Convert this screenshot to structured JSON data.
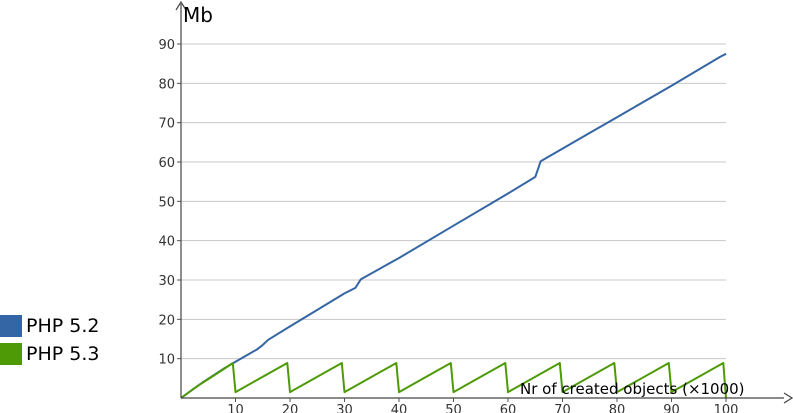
{
  "chart_data": {
    "type": "line",
    "title": "",
    "xlabel": "Nr of created objects (×1000)",
    "ylabel": "Mb",
    "xlim": [
      0,
      100
    ],
    "ylim": [
      0,
      90
    ],
    "x_ticks": [
      10,
      20,
      30,
      40,
      50,
      60,
      70,
      80,
      90,
      100
    ],
    "y_ticks": [
      10,
      20,
      30,
      40,
      50,
      60,
      70,
      80,
      90
    ],
    "grid": "horizontal",
    "legend_position": "bottom-left",
    "series": [
      {
        "name": "PHP 5.2",
        "color": "#3465a4",
        "points": [
          [
            0,
            0
          ],
          [
            2,
            2
          ],
          [
            4,
            4
          ],
          [
            6,
            5.8
          ],
          [
            8,
            7.6
          ],
          [
            10,
            9.2
          ],
          [
            12,
            10.8
          ],
          [
            14,
            12.4
          ],
          [
            15,
            13.5
          ],
          [
            16,
            14.8
          ],
          [
            20,
            18.2
          ],
          [
            25,
            22.4
          ],
          [
            30,
            26.6
          ],
          [
            32,
            28
          ],
          [
            33,
            30.2
          ],
          [
            40,
            35.6
          ],
          [
            50,
            43.8
          ],
          [
            60,
            52
          ],
          [
            65,
            56.2
          ],
          [
            66,
            60.2
          ],
          [
            70,
            63.4
          ],
          [
            80,
            71.4
          ],
          [
            90,
            79.4
          ],
          [
            99,
            86.8
          ],
          [
            100,
            87.5
          ]
        ]
      },
      {
        "name": "PHP 5.3",
        "color": "#4e9a06",
        "points": [
          [
            0,
            0
          ],
          [
            3,
            3
          ],
          [
            5,
            4.8
          ],
          [
            8,
            7.5
          ],
          [
            9.5,
            8.9
          ],
          [
            10,
            1.5
          ],
          [
            19.5,
            8.9
          ],
          [
            20,
            1.5
          ],
          [
            29.5,
            8.9
          ],
          [
            30,
            1.5
          ],
          [
            39.5,
            8.9
          ],
          [
            40,
            1.5
          ],
          [
            49.5,
            8.9
          ],
          [
            50,
            1.5
          ],
          [
            59.5,
            8.9
          ],
          [
            60,
            1.5
          ],
          [
            69.5,
            8.9
          ],
          [
            70,
            1.5
          ],
          [
            79.5,
            8.9
          ],
          [
            80,
            1.5
          ],
          [
            89.5,
            8.9
          ],
          [
            90,
            1.5
          ],
          [
            99.5,
            8.9
          ],
          [
            100,
            0
          ]
        ]
      }
    ]
  },
  "legend": {
    "items": [
      {
        "label": "PHP 5.2",
        "color": "#3465a4"
      },
      {
        "label": "PHP 5.3",
        "color": "#4e9a06"
      }
    ]
  }
}
